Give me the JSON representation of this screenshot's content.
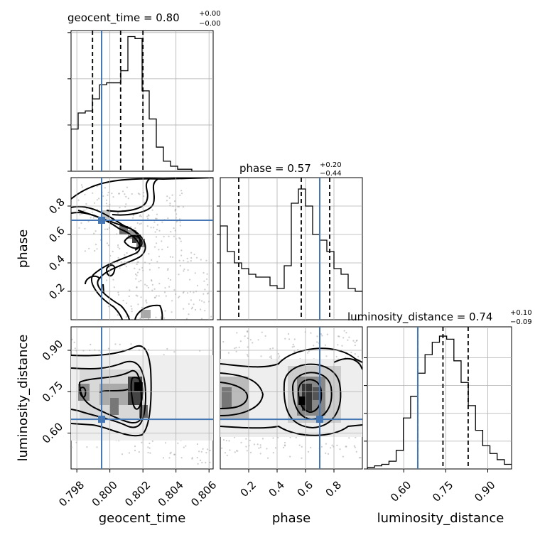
{
  "chart_data": {
    "type": "corner",
    "truth_color": "#4477b3",
    "params": [
      {
        "name": "geocent_time",
        "label": "geocent_time",
        "title": {
          "main": "geocent_time = 0.80",
          "sup": "+0.00",
          "sub": "−0.00"
        },
        "range": [
          0.79765,
          0.80625
        ],
        "ticks": [
          0.798,
          0.8,
          0.802,
          0.804,
          0.806
        ],
        "tick_labels": [
          "0.798",
          "0.800",
          "0.802",
          "0.804",
          "0.806"
        ],
        "truth": 0.7995,
        "quantiles": [
          0.79895,
          0.80065,
          0.802
        ],
        "hist_values": [
          0.21,
          0.29,
          0.3,
          0.36,
          0.43,
          0.44,
          0.44,
          0.5,
          0.67,
          0.66,
          0.4,
          0.26,
          0.12,
          0.05,
          0.025,
          0.01,
          0.01,
          0.0,
          0.0,
          0.0
        ],
        "hist_ymax": 0.7,
        "hist_ticks": [
          0.0,
          0.23,
          0.46,
          0.69
        ]
      },
      {
        "name": "phase",
        "label": "phase",
        "title": {
          "main": "phase = 0.57",
          "sup": "+0.20",
          "sub": "−0.44"
        },
        "range": [
          0.0,
          1.0
        ],
        "ticks": [
          0.2,
          0.4,
          0.6,
          0.8
        ],
        "tick_labels": [
          "0.2",
          "0.4",
          "0.6",
          "0.8"
        ],
        "truth": 0.7,
        "quantiles": [
          0.13,
          0.57,
          0.77
        ],
        "hist_values": [
          0.33,
          0.24,
          0.2,
          0.18,
          0.16,
          0.15,
          0.15,
          0.12,
          0.11,
          0.19,
          0.41,
          0.46,
          0.4,
          0.3,
          0.28,
          0.24,
          0.18,
          0.16,
          0.11,
          0.1
        ],
        "hist_ymax": 0.5,
        "hist_ticks": [
          0.0,
          0.1,
          0.2,
          0.3,
          0.4
        ]
      },
      {
        "name": "luminosity_distance",
        "label": "luminosity_distance",
        "title": {
          "main": "luminosity_distance = 0.74",
          "sup": "+0.10",
          "sub": "−0.09"
        },
        "range": [
          0.47,
          0.985
        ],
        "ticks": [
          0.6,
          0.75,
          0.9
        ],
        "tick_labels": [
          "0.60",
          "0.75",
          "0.90"
        ],
        "truth": 0.65,
        "quantiles": [
          0.65,
          0.74,
          0.83
        ],
        "hist_values": [
          0.01,
          0.02,
          0.03,
          0.05,
          0.12,
          0.33,
          0.47,
          0.62,
          0.74,
          0.82,
          0.86,
          0.84,
          0.7,
          0.56,
          0.41,
          0.25,
          0.15,
          0.1,
          0.06,
          0.03
        ],
        "hist_ymax": 0.92,
        "hist_ticks": [
          0.0,
          0.18,
          0.36,
          0.54,
          0.72
        ]
      }
    ]
  }
}
